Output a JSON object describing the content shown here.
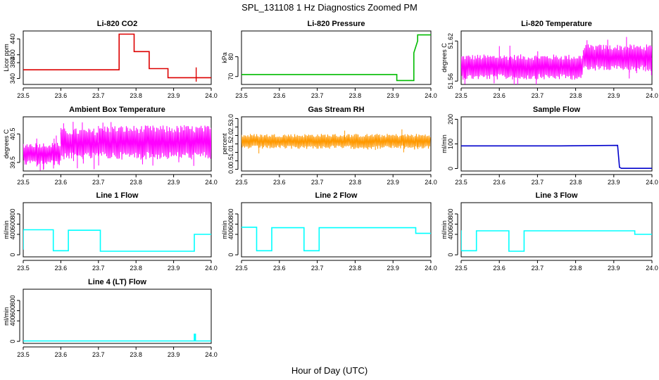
{
  "figure": {
    "title": "SPL_131108  1 Hz Diagnostics Zoomed PM",
    "xlabel": "Hour of Day (UTC)"
  },
  "chart_data": [
    {
      "type": "line",
      "title": "Li-820 CO2",
      "ylabel": "Licor ppm",
      "color": "#dd0000",
      "xlim": [
        23.5,
        24.0
      ],
      "ylim": [
        325,
        460
      ],
      "xticks": [
        "23.5",
        "23.6",
        "23.7",
        "23.8",
        "23.9",
        "24.0"
      ],
      "yticks": [
        {
          "v": 340,
          "label": "340"
        },
        {
          "v": 380,
          "label": "380"
        },
        {
          "v": 400,
          "label": "400"
        },
        {
          "v": 440,
          "label": "440"
        }
      ],
      "series": [
        {
          "x": [
            23.5,
            23.755,
            23.755,
            23.795,
            23.795,
            23.835,
            23.835,
            23.885,
            23.885,
            24.0
          ],
          "y": [
            362,
            362,
            452,
            452,
            408,
            408,
            365,
            365,
            342,
            342
          ]
        }
      ],
      "spikes": [
        {
          "x": 23.96,
          "y1": 332,
          "y2": 368
        }
      ]
    },
    {
      "type": "line",
      "title": "Li-820 Pressure",
      "ylabel": "kPa",
      "color": "#00bb00",
      "xlim": [
        23.5,
        24.0
      ],
      "ylim": [
        66,
        93
      ],
      "xticks": [
        "23.5",
        "23.6",
        "23.7",
        "23.8",
        "23.9",
        "24.0"
      ],
      "yticks": [
        {
          "v": 70,
          "label": "70"
        },
        {
          "v": 80,
          "label": "80"
        }
      ],
      "series": [
        {
          "x": [
            23.5,
            23.91,
            23.91,
            23.955,
            23.955,
            23.965,
            23.965,
            24.0
          ],
          "y": [
            71,
            71,
            68,
            68,
            82,
            88,
            91,
            91
          ]
        }
      ]
    },
    {
      "type": "line",
      "title": "Li-820 Temperature",
      "ylabel": "degrees C",
      "color": "#ff00ff",
      "xlim": [
        23.5,
        24.0
      ],
      "ylim": [
        51.555,
        51.635
      ],
      "xticks": [
        "23.5",
        "23.6",
        "23.7",
        "23.8",
        "23.9",
        "24.0"
      ],
      "yticks": [
        {
          "v": 51.56,
          "label": "51.56"
        },
        {
          "v": 51.62,
          "label": "51.62"
        }
      ],
      "noise": {
        "type": "band",
        "segments": [
          {
            "x1": 23.5,
            "x2": 23.82,
            "lo": 51.562,
            "hi": 51.6
          },
          {
            "x1": 23.82,
            "x2": 24.0,
            "lo": 51.575,
            "hi": 51.615
          }
        ]
      }
    },
    {
      "type": "line",
      "title": "Ambient Box Temperature",
      "ylabel": "degrees C",
      "color": "#ff00ff",
      "xlim": [
        23.5,
        24.0
      ],
      "ylim": [
        39.2,
        41.1
      ],
      "xticks": [
        "23.5",
        "23.6",
        "23.7",
        "23.8",
        "23.9",
        "24.0"
      ],
      "yticks": [
        {
          "v": 39.5,
          "label": "39.5"
        },
        {
          "v": 40.5,
          "label": "40.5"
        }
      ],
      "noise": {
        "type": "band",
        "segments": [
          {
            "x1": 23.5,
            "x2": 23.6,
            "lo": 39.4,
            "hi": 40.2
          },
          {
            "x1": 23.6,
            "x2": 23.7,
            "lo": 39.6,
            "hi": 40.7
          },
          {
            "x1": 23.7,
            "x2": 24.0,
            "lo": 39.6,
            "hi": 40.8
          }
        ]
      }
    },
    {
      "type": "line",
      "title": "Gas Stream RH",
      "ylabel": "percent",
      "color": "#ff9900",
      "xlim": [
        23.5,
        24.0
      ],
      "ylim": [
        -0.1,
        3.1
      ],
      "xticks": [
        "23.5",
        "23.6",
        "23.7",
        "23.8",
        "23.9",
        "24.0"
      ],
      "yticks": [
        {
          "v": 0,
          "label": "0.0"
        },
        {
          "v": 0.5,
          "label": "0.5"
        },
        {
          "v": 1,
          "label": "1.0"
        },
        {
          "v": 1.5,
          "label": "1.5"
        },
        {
          "v": 2,
          "label": "2.0"
        },
        {
          "v": 2.5,
          "label": "2.5"
        },
        {
          "v": 3,
          "label": "3.0"
        }
      ],
      "noise": {
        "type": "band",
        "segments": [
          {
            "x1": 23.5,
            "x2": 24.0,
            "lo": 1.2,
            "hi": 2.1
          }
        ]
      }
    },
    {
      "type": "line",
      "title": "Sample Flow",
      "ylabel": "ml/min",
      "color": "#0000cc",
      "xlim": [
        23.5,
        24.0
      ],
      "ylim": [
        -10,
        210
      ],
      "xticks": [
        "23.5",
        "23.6",
        "23.7",
        "23.8",
        "23.9",
        "24.0"
      ],
      "yticks": [
        {
          "v": 0,
          "label": "0"
        },
        {
          "v": 100,
          "label": "100"
        },
        {
          "v": 200,
          "label": "200"
        }
      ],
      "series": [
        {
          "x": [
            23.5,
            23.76,
            23.91,
            23.915,
            23.92,
            24.0
          ],
          "y": [
            92,
            92,
            94,
            5,
            1,
            1
          ]
        }
      ]
    },
    {
      "type": "line",
      "title": "Line 1 Flow",
      "ylabel": "ml/min",
      "color": "#00ffff",
      "xlim": [
        23.5,
        24.0
      ],
      "ylim": [
        -40,
        1020
      ],
      "xticks": [
        "23.5",
        "23.6",
        "23.7",
        "23.8",
        "23.9",
        "24.0"
      ],
      "yticks": [
        {
          "v": 0,
          "label": "0"
        },
        {
          "v": 400,
          "label": "400"
        },
        {
          "v": 600,
          "label": "600"
        },
        {
          "v": 800,
          "label": "800"
        }
      ],
      "series": [
        {
          "x": [
            23.5,
            23.5,
            23.58,
            23.58,
            23.62,
            23.62,
            23.705,
            23.705,
            23.955,
            23.955,
            24.0
          ],
          "y": [
            100,
            490,
            490,
            80,
            80,
            480,
            480,
            70,
            70,
            400,
            400
          ]
        }
      ]
    },
    {
      "type": "line",
      "title": "Line 2 Flow",
      "ylabel": "ml/min",
      "color": "#00ffff",
      "xlim": [
        23.5,
        24.0
      ],
      "ylim": [
        -40,
        1020
      ],
      "xticks": [
        "23.5",
        "23.6",
        "23.7",
        "23.8",
        "23.9",
        "24.0"
      ],
      "yticks": [
        {
          "v": 0,
          "label": "0"
        },
        {
          "v": 400,
          "label": "400"
        },
        {
          "v": 600,
          "label": "600"
        },
        {
          "v": 800,
          "label": "800"
        }
      ],
      "series": [
        {
          "x": [
            23.5,
            23.54,
            23.54,
            23.58,
            23.58,
            23.665,
            23.665,
            23.705,
            23.705,
            23.96,
            23.96,
            24.0
          ],
          "y": [
            540,
            540,
            80,
            80,
            530,
            530,
            80,
            80,
            530,
            530,
            420,
            420
          ]
        }
      ]
    },
    {
      "type": "line",
      "title": "Line 3 Flow",
      "ylabel": "ml/min",
      "color": "#00ffff",
      "xlim": [
        23.5,
        24.0
      ],
      "ylim": [
        -40,
        1020
      ],
      "xticks": [
        "23.5",
        "23.6",
        "23.7",
        "23.8",
        "23.9",
        "24.0"
      ],
      "yticks": [
        {
          "v": 0,
          "label": "0"
        },
        {
          "v": 400,
          "label": "400"
        },
        {
          "v": 600,
          "label": "600"
        },
        {
          "v": 800,
          "label": "800"
        }
      ],
      "series": [
        {
          "x": [
            23.5,
            23.5,
            23.54,
            23.54,
            23.625,
            23.625,
            23.665,
            23.665,
            23.955,
            23.955,
            24.0
          ],
          "y": [
            480,
            80,
            80,
            470,
            470,
            70,
            70,
            470,
            470,
            400,
            400
          ]
        }
      ]
    },
    {
      "type": "line",
      "title": "Line 4 (LT) Flow",
      "ylabel": "ml/min",
      "color": "#00ffff",
      "xlim": [
        23.5,
        24.0
      ],
      "ylim": [
        -40,
        1020
      ],
      "xticks": [
        "23.5",
        "23.6",
        "23.7",
        "23.8",
        "23.9",
        "24.0"
      ],
      "yticks": [
        {
          "v": 0,
          "label": "0"
        },
        {
          "v": 400,
          "label": "400"
        },
        {
          "v": 600,
          "label": "600"
        },
        {
          "v": 800,
          "label": "800"
        }
      ],
      "series": [
        {
          "x": [
            23.5,
            23.955,
            23.955,
            23.958,
            23.958,
            24.0
          ],
          "y": [
            8,
            8,
            140,
            140,
            8,
            8
          ]
        }
      ]
    }
  ]
}
